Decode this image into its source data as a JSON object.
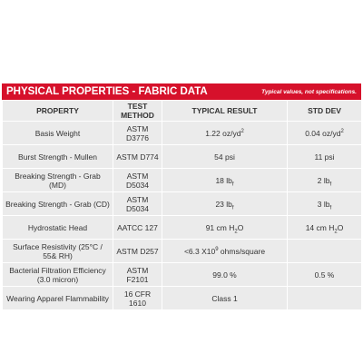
{
  "header": {
    "title": "PHYSICAL PROPERTIES - FABRIC DATA",
    "note": "Typical values, not specifications."
  },
  "table": {
    "columns": [
      "PROPERTY",
      "TEST METHOD",
      "TYPICAL RESULT",
      "STD DEV"
    ],
    "rows": [
      [
        "Basis Weight",
        "ASTM D3776",
        [
          "1.22 oz/yd",
          {
            "text": "2",
            "style": "sup"
          }
        ],
        [
          "0.04 oz/yd",
          {
            "text": "2",
            "style": "sup"
          }
        ]
      ],
      [
        "Burst Strength - Mullen",
        "ASTM D774",
        "54 psi",
        "11 psi"
      ],
      [
        "Breaking Strength - Grab (MD)",
        "ASTM D5034",
        [
          "18 lb",
          {
            "text": "f",
            "style": "sub"
          }
        ],
        [
          "2 lb",
          {
            "text": "f",
            "style": "sub"
          }
        ]
      ],
      [
        "Breaking Strength - Grab (CD)",
        "ASTM D5034",
        [
          "23 lb",
          {
            "text": "f",
            "style": "sub"
          }
        ],
        [
          "3 lb",
          {
            "text": "f",
            "style": "sub"
          }
        ]
      ],
      [
        "Hydrostatic Head",
        "AATCC 127",
        [
          "91 cm H",
          {
            "text": "2",
            "style": "sub"
          },
          "O"
        ],
        [
          "14 cm H",
          {
            "text": "2",
            "style": "sub"
          },
          "O"
        ]
      ],
      [
        "Surface Resistivity (25°C / 55& RH)",
        "ASTM D257",
        [
          "<6.3 X10",
          {
            "text": "9",
            "style": "sup"
          },
          " ohms/square"
        ],
        ""
      ],
      [
        "Bacterial Filtration Efficiency (3.0 micron)",
        "ASTM F2101",
        "99.0 %",
        "0.5 %"
      ],
      [
        "Wearing Apparel Flammability",
        "16 CFR 1610",
        "Class 1",
        ""
      ]
    ]
  }
}
